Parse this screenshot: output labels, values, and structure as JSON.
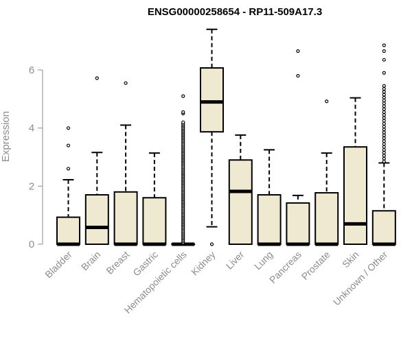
{
  "chart_data": {
    "type": "box",
    "title": "ENSG00000258654 - RP11-509A17.3",
    "xlabel": "",
    "ylabel": "Expression",
    "ylim": [
      0,
      7.4
    ],
    "yticks": [
      0,
      2,
      4,
      6
    ],
    "grid": false,
    "box_fill": "#efe9d2",
    "categories": [
      "Bladder",
      "Brain",
      "Breast",
      "Gastric",
      "Hematopoietic cells",
      "Kidney",
      "Liver",
      "Lung",
      "Pancreas",
      "Prostate",
      "Skin",
      "Unknown / Other"
    ],
    "boxes": [
      {
        "label": "Bladder",
        "whisker_low": 0,
        "q1": 0,
        "median": 0,
        "q3": 0.93,
        "whisker_high": 2.22,
        "outliers": [
          2.6,
          3.4,
          4.0
        ]
      },
      {
        "label": "Brain",
        "whisker_low": 0,
        "q1": 0,
        "median": 0.58,
        "q3": 1.7,
        "whisker_high": 3.16,
        "outliers": [
          5.72
        ]
      },
      {
        "label": "Breast",
        "whisker_low": 0,
        "q1": 0,
        "median": 0,
        "q3": 1.8,
        "whisker_high": 4.1,
        "outliers": [
          5.55
        ]
      },
      {
        "label": "Gastric",
        "whisker_low": 0,
        "q1": 0,
        "median": 0,
        "q3": 1.6,
        "whisker_high": 3.14,
        "outliers": []
      },
      {
        "label": "Hematopoietic cells",
        "whisker_low": 0,
        "q1": 0,
        "median": 0,
        "q3": 0,
        "whisker_high": 0,
        "outliers": [
          0.05,
          0.1,
          0.15,
          0.2,
          0.25,
          0.3,
          0.35,
          0.4,
          0.45,
          0.5,
          0.55,
          0.6,
          0.65,
          0.7,
          0.75,
          0.8,
          0.85,
          0.9,
          0.95,
          1.0,
          1.05,
          1.1,
          1.15,
          1.2,
          1.25,
          1.3,
          1.35,
          1.4,
          1.45,
          1.5,
          1.55,
          1.6,
          1.65,
          1.7,
          1.75,
          1.8,
          1.85,
          1.9,
          1.95,
          2.0,
          2.05,
          2.1,
          2.15,
          2.2,
          2.25,
          2.3,
          2.35,
          2.4,
          2.45,
          2.5,
          2.55,
          2.6,
          2.65,
          2.7,
          2.75,
          2.8,
          2.85,
          2.9,
          2.95,
          3.0,
          3.05,
          3.1,
          3.15,
          3.2,
          3.25,
          3.3,
          3.35,
          3.4,
          3.45,
          3.5,
          3.55,
          3.6,
          3.65,
          3.7,
          3.75,
          3.8,
          3.85,
          3.9,
          3.95,
          4.0,
          4.05,
          4.1,
          4.15,
          4.2,
          4.5,
          4.55,
          5.1
        ]
      },
      {
        "label": "Kidney",
        "whisker_low": 0.6,
        "q1": 3.87,
        "median": 4.9,
        "q3": 6.07,
        "whisker_high": 7.4,
        "outliers": [
          0
        ]
      },
      {
        "label": "Liver",
        "whisker_low": 0,
        "q1": 0,
        "median": 1.82,
        "q3": 2.9,
        "whisker_high": 3.76,
        "outliers": []
      },
      {
        "label": "Lung",
        "whisker_low": 0,
        "q1": 0,
        "median": 0,
        "q3": 1.7,
        "whisker_high": 3.25,
        "outliers": []
      },
      {
        "label": "Pancreas",
        "whisker_low": 0,
        "q1": 0,
        "median": 0,
        "q3": 1.42,
        "whisker_high": 1.68,
        "outliers": [
          5.8,
          6.65
        ]
      },
      {
        "label": "Prostate",
        "whisker_low": 0,
        "q1": 0,
        "median": 0,
        "q3": 1.77,
        "whisker_high": 3.14,
        "outliers": [
          4.92
        ]
      },
      {
        "label": "Skin",
        "whisker_low": 0,
        "q1": 0,
        "median": 0.7,
        "q3": 3.35,
        "whisker_high": 5.04,
        "outliers": []
      },
      {
        "label": "Unknown / Other",
        "whisker_low": 0,
        "q1": 0,
        "median": 0,
        "q3": 1.15,
        "whisker_high": 2.8,
        "outliers": [
          2.85,
          2.95,
          3.05,
          3.15,
          3.25,
          3.35,
          3.45,
          3.55,
          3.65,
          3.75,
          3.85,
          3.95,
          4.05,
          4.15,
          4.25,
          4.35,
          4.45,
          4.55,
          4.65,
          4.75,
          4.85,
          4.95,
          5.05,
          5.15,
          5.25,
          5.35,
          5.45,
          5.9,
          6.35,
          6.65,
          6.85
        ]
      }
    ]
  }
}
